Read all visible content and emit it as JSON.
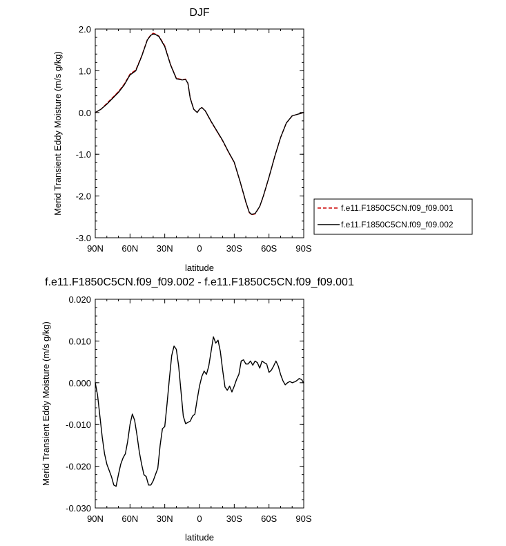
{
  "chart_data": [
    {
      "type": "line",
      "title": "DJF",
      "xlabel": "latitude",
      "ylabel": "Merid Transient Eddy Moisture (m/s g/kg)",
      "xlim": [
        90,
        -90
      ],
      "ylim": [
        -3.0,
        2.0
      ],
      "x_ticks": [
        90,
        60,
        30,
        0,
        -30,
        -60,
        -90
      ],
      "x_tick_labels": [
        "90N",
        "60N",
        "30N",
        "0",
        "30S",
        "60S",
        "90S"
      ],
      "y_ticks": [
        2.0,
        1.0,
        0.0,
        -1.0,
        -2.0,
        -3.0
      ],
      "y_tick_labels": [
        "2.0",
        "1.0",
        "0.0",
        "-1.0",
        "-2.0",
        "-3.0"
      ],
      "legend_placement": "right",
      "x": [
        90,
        85,
        80,
        75,
        70,
        65,
        60,
        55,
        50,
        45,
        42,
        40,
        38,
        35,
        30,
        25,
        20,
        15,
        12,
        10,
        8,
        5,
        2,
        0,
        -2,
        -5,
        -10,
        -15,
        -20,
        -25,
        -30,
        -35,
        -38,
        -40,
        -43,
        -45,
        -48,
        -52,
        -55,
        -60,
        -65,
        -70,
        -75,
        -80,
        -85,
        -90
      ],
      "series": [
        {
          "name": "f.e11.F1850C5CN.f09_f09.001",
          "color": "#cc0000",
          "dash": "dashed",
          "values": [
            0.0,
            0.08,
            0.22,
            0.36,
            0.5,
            0.68,
            0.92,
            1.02,
            1.35,
            1.75,
            1.86,
            1.9,
            1.88,
            1.83,
            1.6,
            1.15,
            0.82,
            0.79,
            0.8,
            0.7,
            0.35,
            0.08,
            0.0,
            0.08,
            0.12,
            0.04,
            -0.22,
            -0.45,
            -0.68,
            -0.95,
            -1.2,
            -1.65,
            -1.95,
            -2.15,
            -2.4,
            -2.45,
            -2.43,
            -2.25,
            -2.02,
            -1.55,
            -1.05,
            -0.6,
            -0.25,
            -0.08,
            -0.04,
            0.0
          ]
        },
        {
          "name": "f.e11.F1850C5CN.f09_f09.002",
          "color": "#000000",
          "dash": "solid",
          "values": [
            0.0,
            0.08,
            0.2,
            0.34,
            0.48,
            0.66,
            0.9,
            1.0,
            1.34,
            1.74,
            1.85,
            1.88,
            1.87,
            1.82,
            1.58,
            1.14,
            0.81,
            0.78,
            0.79,
            0.7,
            0.34,
            0.08,
            0.0,
            0.08,
            0.12,
            0.04,
            -0.21,
            -0.44,
            -0.67,
            -0.94,
            -1.19,
            -1.65,
            -1.94,
            -2.14,
            -2.39,
            -2.44,
            -2.42,
            -2.25,
            -2.01,
            -1.55,
            -1.05,
            -0.6,
            -0.25,
            -0.08,
            -0.04,
            0.0
          ]
        }
      ]
    },
    {
      "type": "line",
      "title": "f.e11.F1850C5CN.f09_f09.002 - f.e11.F1850C5CN.f09_f09.001",
      "xlabel": "latitude",
      "ylabel": "Merid Transient Eddy Moisture (m/s g/kg)",
      "xlim": [
        90,
        -90
      ],
      "ylim": [
        -0.03,
        0.02
      ],
      "x_ticks": [
        90,
        60,
        30,
        0,
        -30,
        -60,
        -90
      ],
      "x_tick_labels": [
        "90N",
        "60N",
        "30N",
        "0",
        "30S",
        "60S",
        "90S"
      ],
      "y_ticks": [
        0.02,
        0.01,
        0.0,
        -0.01,
        -0.02,
        -0.03
      ],
      "y_tick_labels": [
        "0.020",
        "0.010",
        "0.000",
        "-0.010",
        "-0.020",
        "-0.030"
      ],
      "x": [
        90,
        88,
        86,
        84,
        82,
        80,
        78,
        76,
        74,
        72,
        70,
        68,
        66,
        64,
        62,
        60,
        58,
        56,
        54,
        52,
        50,
        48,
        46,
        44,
        42,
        40,
        38,
        36,
        34,
        32,
        30,
        28,
        26,
        24,
        22,
        20,
        18,
        16,
        14,
        12,
        10,
        8,
        6,
        4,
        2,
        0,
        -2,
        -4,
        -6,
        -8,
        -10,
        -12,
        -14,
        -16,
        -18,
        -20,
        -22,
        -24,
        -26,
        -28,
        -30,
        -32,
        -34,
        -36,
        -38,
        -40,
        -42,
        -44,
        -46,
        -48,
        -50,
        -52,
        -54,
        -56,
        -58,
        -60,
        -62,
        -64,
        -66,
        -68,
        -70,
        -72,
        -74,
        -76,
        -78,
        -80,
        -82,
        -84,
        -86,
        -88,
        -90
      ],
      "series": [
        {
          "name": "",
          "color": "#000000",
          "dash": "solid",
          "values": [
            0.0,
            -0.003,
            -0.008,
            -0.013,
            -0.017,
            -0.0195,
            -0.021,
            -0.0225,
            -0.0245,
            -0.0248,
            -0.022,
            -0.0195,
            -0.018,
            -0.017,
            -0.014,
            -0.01,
            -0.0075,
            -0.009,
            -0.0125,
            -0.0165,
            -0.0195,
            -0.022,
            -0.0225,
            -0.0245,
            -0.0245,
            -0.0235,
            -0.022,
            -0.0205,
            -0.015,
            -0.011,
            -0.0105,
            -0.005,
            0.001,
            0.0065,
            0.0088,
            0.008,
            0.004,
            -0.002,
            -0.008,
            -0.0098,
            -0.0095,
            -0.0092,
            -0.008,
            -0.0075,
            -0.004,
            -0.0008,
            0.0015,
            0.0028,
            0.002,
            0.004,
            0.0075,
            0.011,
            0.0095,
            0.0102,
            0.0075,
            0.003,
            -0.001,
            -0.0018,
            -0.0008,
            -0.0022,
            -0.0008,
            0.0008,
            0.002,
            0.0052,
            0.0055,
            0.0045,
            0.0045,
            0.0052,
            0.0042,
            0.0052,
            0.0048,
            0.0035,
            0.0052,
            0.0048,
            0.0045,
            0.0025,
            0.003,
            0.004,
            0.0052,
            0.004,
            0.002,
            0.0005,
            -0.0005,
            0.0,
            0.0003,
            0.0,
            0.0002,
            0.0005,
            0.001,
            0.0008,
            0.0
          ]
        }
      ]
    }
  ]
}
